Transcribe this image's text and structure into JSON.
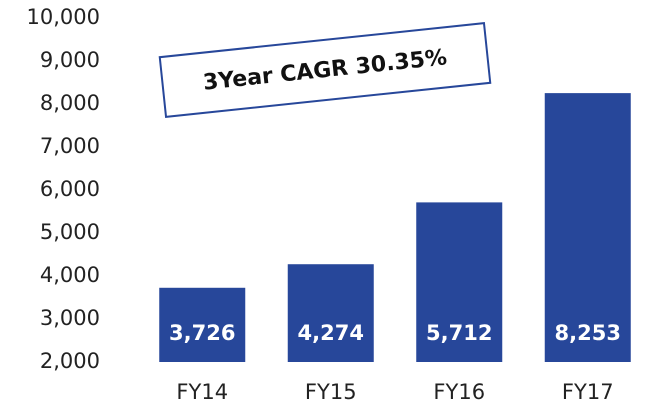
{
  "chart_data": {
    "type": "bar",
    "annotation": "3Year CAGR 30.35%",
    "categories": [
      "FY14",
      "FY15",
      "FY16",
      "FY17"
    ],
    "values": [
      3726,
      4274,
      5712,
      8253
    ],
    "value_labels": [
      "3,726",
      "4,274",
      "5,712",
      "8,253"
    ],
    "color": "#27479a",
    "ylim": [
      2000,
      10000
    ],
    "yticks": [
      {
        "value": 2000,
        "label": "2,000"
      },
      {
        "value": 3000,
        "label": "3,000"
      },
      {
        "value": 4000,
        "label": "4,000"
      },
      {
        "value": 5000,
        "label": "5,000"
      },
      {
        "value": 6000,
        "label": "6,000"
      },
      {
        "value": 7000,
        "label": "7,000"
      },
      {
        "value": 8000,
        "label": "8,000"
      },
      {
        "value": 9000,
        "label": "9,000"
      },
      {
        "value": 10000,
        "label": "10,000"
      }
    ],
    "grid": false
  }
}
